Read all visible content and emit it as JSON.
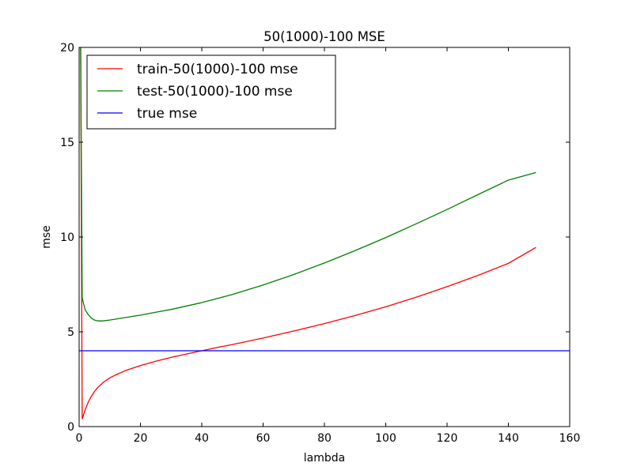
{
  "chart_data": {
    "type": "line",
    "title": "50(1000)-100 MSE",
    "xlabel": "lambda",
    "ylabel": "mse",
    "xlim": [
      0,
      160
    ],
    "ylim": [
      0,
      20
    ],
    "xticks": [
      0,
      20,
      40,
      60,
      80,
      100,
      120,
      140,
      160
    ],
    "yticks": [
      0,
      5,
      10,
      15,
      20
    ],
    "grid": false,
    "legend_position": "top-left",
    "series": [
      {
        "name": "train-50(1000)-100 mse",
        "color": "#ff0000",
        "x": [
          0,
          0.5,
          1,
          1.5,
          2,
          3,
          4,
          5,
          6,
          8,
          10,
          12,
          15,
          20,
          25,
          30,
          35,
          40,
          45,
          50,
          60,
          70,
          80,
          90,
          100,
          110,
          120,
          130,
          140,
          149
        ],
        "y": [
          20,
          20,
          0.4,
          0.65,
          0.9,
          1.3,
          1.6,
          1.85,
          2.05,
          2.35,
          2.57,
          2.73,
          2.95,
          3.22,
          3.45,
          3.65,
          3.83,
          4.0,
          4.17,
          4.33,
          4.67,
          5.04,
          5.43,
          5.86,
          6.32,
          6.83,
          7.38,
          7.97,
          8.61,
          9.45
        ]
      },
      {
        "name": "test-50(1000)-100 mse",
        "color": "#008000",
        "x": [
          0,
          0.5,
          1,
          1.5,
          2,
          3,
          4,
          5,
          6,
          7,
          8,
          10,
          12,
          15,
          20,
          25,
          30,
          40,
          50,
          60,
          70,
          80,
          90,
          100,
          110,
          120,
          130,
          140,
          149
        ],
        "y": [
          20,
          20,
          6.8,
          6.45,
          6.15,
          5.9,
          5.72,
          5.62,
          5.58,
          5.57,
          5.58,
          5.62,
          5.67,
          5.75,
          5.88,
          6.03,
          6.18,
          6.54,
          6.97,
          7.47,
          8.02,
          8.63,
          9.28,
          9.97,
          10.7,
          11.45,
          12.23,
          13.0,
          13.4
        ]
      },
      {
        "name": "true mse",
        "color": "#0000ff",
        "x": [
          0,
          160
        ],
        "y": [
          4,
          4
        ]
      }
    ]
  }
}
